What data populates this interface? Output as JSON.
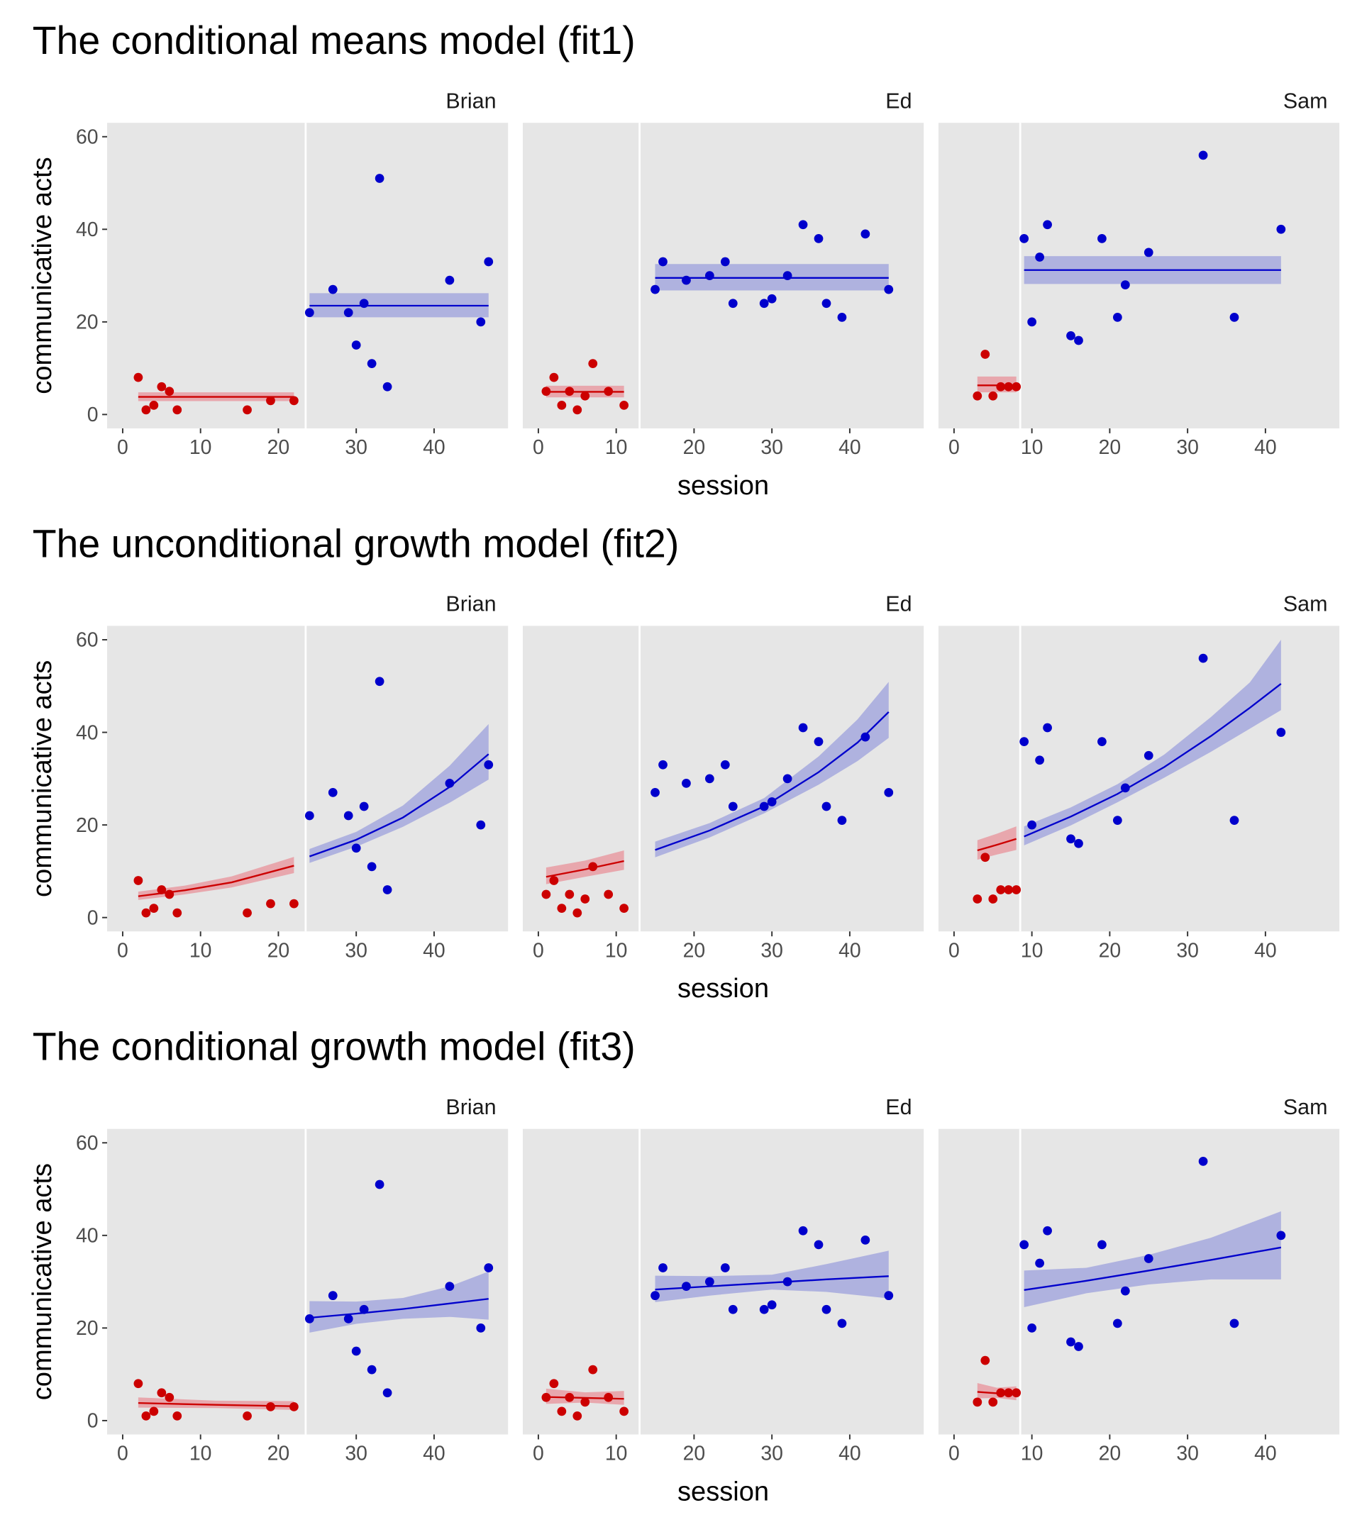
{
  "chart_data": {
    "type": "scatter",
    "xlabel": "session",
    "ylabel": "communicative acts",
    "xlim": [
      -2,
      49.5
    ],
    "ylim": [
      -3,
      63
    ],
    "xticks": [
      0,
      10,
      20,
      30,
      40
    ],
    "yticks": [
      0,
      20,
      40,
      60
    ],
    "grid": false,
    "legend": "none",
    "colors": {
      "baseline": "#cc0000",
      "treatment": "#0000cc",
      "panel_background": "#e6e6e6",
      "baseline_ribbon": "#e8a0a6",
      "treatment_ribbon": "#a8acde"
    },
    "people": [
      {
        "name": "Brian",
        "phase_boundary": 23.5,
        "baseline": {
          "x": [
            2,
            3,
            4,
            5,
            6,
            7,
            16,
            19,
            22
          ],
          "y": [
            8,
            1,
            2,
            6,
            5,
            1,
            1,
            3,
            3
          ]
        },
        "treatment": {
          "x": [
            24,
            27,
            29,
            30,
            31,
            32,
            33,
            34,
            42,
            46,
            47
          ],
          "y": [
            22,
            27,
            22,
            15,
            24,
            11,
            51,
            6,
            29,
            20,
            33
          ]
        }
      },
      {
        "name": "Ed",
        "phase_boundary": 13,
        "baseline": {
          "x": [
            1,
            2,
            3,
            4,
            5,
            6,
            7,
            9,
            11
          ],
          "y": [
            5,
            8,
            2,
            5,
            1,
            4,
            11,
            5,
            2
          ]
        },
        "treatment": {
          "x": [
            15,
            16,
            19,
            22,
            24,
            25,
            29,
            30,
            32,
            34,
            36,
            37,
            39,
            42,
            45
          ],
          "y": [
            27,
            33,
            29,
            30,
            33,
            24,
            24,
            25,
            30,
            41,
            38,
            24,
            21,
            39,
            27
          ]
        }
      },
      {
        "name": "Sam",
        "phase_boundary": 8.5,
        "baseline": {
          "x": [
            3,
            4,
            5,
            6,
            7,
            8
          ],
          "y": [
            4,
            13,
            4,
            6,
            6,
            6
          ]
        },
        "treatment": {
          "x": [
            9,
            10,
            11,
            12,
            15,
            16,
            19,
            21,
            22,
            25,
            32,
            36,
            42
          ],
          "y": [
            38,
            20,
            34,
            41,
            17,
            16,
            38,
            21,
            28,
            35,
            56,
            21,
            40
          ]
        }
      }
    ],
    "models": [
      {
        "title": "The conditional means model (fit1)",
        "fits": [
          {
            "person": "Brian",
            "baseline": {
              "x": [
                2,
                22
              ],
              "y": [
                3.8,
                3.8
              ],
              "lo": [
                2.9,
                2.9
              ],
              "hi": [
                4.8,
                4.8
              ]
            },
            "treatment": {
              "x": [
                24,
                47
              ],
              "y": [
                23.5,
                23.5
              ],
              "lo": [
                21.0,
                21.0
              ],
              "hi": [
                26.2,
                26.2
              ]
            }
          },
          {
            "person": "Ed",
            "baseline": {
              "x": [
                1,
                11
              ],
              "y": [
                4.9,
                4.9
              ],
              "lo": [
                3.7,
                3.7
              ],
              "hi": [
                6.2,
                6.2
              ]
            },
            "treatment": {
              "x": [
                15,
                45
              ],
              "y": [
                29.5,
                29.5
              ],
              "lo": [
                26.8,
                26.8
              ],
              "hi": [
                32.5,
                32.5
              ]
            }
          },
          {
            "person": "Sam",
            "baseline": {
              "x": [
                3,
                8
              ],
              "y": [
                6.3,
                6.3
              ],
              "lo": [
                4.8,
                4.8
              ],
              "hi": [
                8.2,
                8.2
              ]
            },
            "treatment": {
              "x": [
                9,
                42
              ],
              "y": [
                31.2,
                31.2
              ],
              "lo": [
                28.2,
                28.2
              ],
              "hi": [
                34.2,
                34.2
              ]
            }
          }
        ]
      },
      {
        "title": "The unconditional growth model (fit2)",
        "fits": [
          {
            "person": "Brian",
            "baseline": {
              "x": [
                2,
                8,
                14,
                22
              ],
              "y": [
                4.6,
                5.9,
                7.6,
                11.2
              ],
              "lo": [
                3.8,
                5.0,
                6.5,
                9.6
              ],
              "hi": [
                5.6,
                6.9,
                8.9,
                13.1
              ]
            },
            "treatment": {
              "x": [
                24,
                30,
                36,
                42,
                47
              ],
              "y": [
                13.2,
                16.8,
                21.6,
                28.2,
                35.3
              ],
              "lo": [
                11.8,
                15.3,
                19.6,
                24.8,
                29.8
              ],
              "hi": [
                14.8,
                18.5,
                24.2,
                32.8,
                41.8
              ]
            }
          },
          {
            "person": "Ed",
            "baseline": {
              "x": [
                1,
                6,
                11
              ],
              "y": [
                8.8,
                10.4,
                12.2
              ],
              "lo": [
                7.2,
                8.8,
                10.3
              ],
              "hi": [
                10.8,
                12.3,
                14.5
              ]
            },
            "treatment": {
              "x": [
                15,
                22,
                29,
                36,
                41,
                45
              ],
              "y": [
                14.6,
                18.8,
                24.0,
                31.4,
                37.8,
                44.4
              ],
              "lo": [
                13.0,
                17.3,
                22.5,
                28.7,
                33.8,
                38.8
              ],
              "hi": [
                16.4,
                20.4,
                25.8,
                34.8,
                42.8,
                50.9
              ]
            }
          },
          {
            "person": "Sam",
            "baseline": {
              "x": [
                3,
                5.5,
                8
              ],
              "y": [
                14.5,
                15.7,
                17.0
              ],
              "lo": [
                12.5,
                13.6,
                14.6
              ],
              "hi": [
                16.7,
                18.1,
                19.7
              ]
            },
            "treatment": {
              "x": [
                9,
                15,
                21,
                27,
                33,
                38,
                42
              ],
              "y": [
                17.5,
                21.8,
                26.7,
                32.5,
                39.2,
                45.3,
                50.5
              ],
              "lo": [
                15.6,
                19.9,
                24.9,
                30.2,
                35.8,
                40.8,
                44.8
              ],
              "hi": [
                19.7,
                23.8,
                28.8,
                35.2,
                43.3,
                50.8,
                60.0
              ]
            }
          }
        ]
      },
      {
        "title": "The conditional growth model (fit3)",
        "fits": [
          {
            "person": "Brian",
            "baseline": {
              "x": [
                2,
                12,
                22
              ],
              "y": [
                3.8,
                3.4,
                3.1
              ],
              "lo": [
                2.8,
                2.7,
                2.3
              ],
              "hi": [
                5.0,
                4.3,
                4.2
              ]
            },
            "treatment": {
              "x": [
                24,
                30,
                36,
                42,
                47
              ],
              "y": [
                22.2,
                23.1,
                24.1,
                25.3,
                26.3
              ],
              "lo": [
                19.0,
                20.9,
                22.0,
                22.4,
                21.8
              ],
              "hi": [
                25.8,
                25.7,
                26.5,
                29.0,
                32.2
              ]
            }
          },
          {
            "person": "Ed",
            "baseline": {
              "x": [
                1,
                6,
                11
              ],
              "y": [
                5.1,
                4.9,
                4.7
              ],
              "lo": [
                3.6,
                3.9,
                3.4
              ],
              "hi": [
                6.9,
                6.1,
                6.4
              ]
            },
            "treatment": {
              "x": [
                15,
                22,
                30,
                37,
                45
              ],
              "y": [
                28.3,
                29.0,
                29.8,
                30.5,
                31.2
              ],
              "lo": [
                25.6,
                27.0,
                28.3,
                27.8,
                26.4
              ],
              "hi": [
                31.3,
                31.2,
                31.5,
                33.8,
                36.7
              ]
            }
          },
          {
            "person": "Sam",
            "baseline": {
              "x": [
                3,
                5.5,
                8
              ],
              "y": [
                6.2,
                5.9,
                5.7
              ],
              "lo": [
                4.8,
                4.9,
                4.4
              ],
              "hi": [
                8.1,
                7.1,
                7.4
              ]
            },
            "treatment": {
              "x": [
                9,
                17,
                25,
                33,
                42
              ],
              "y": [
                28.2,
                30.2,
                32.4,
                34.7,
                37.4
              ],
              "lo": [
                24.5,
                27.5,
                29.4,
                30.5,
                30.5
              ],
              "hi": [
                32.4,
                33.0,
                35.8,
                39.5,
                45.2
              ]
            }
          }
        ]
      }
    ]
  }
}
